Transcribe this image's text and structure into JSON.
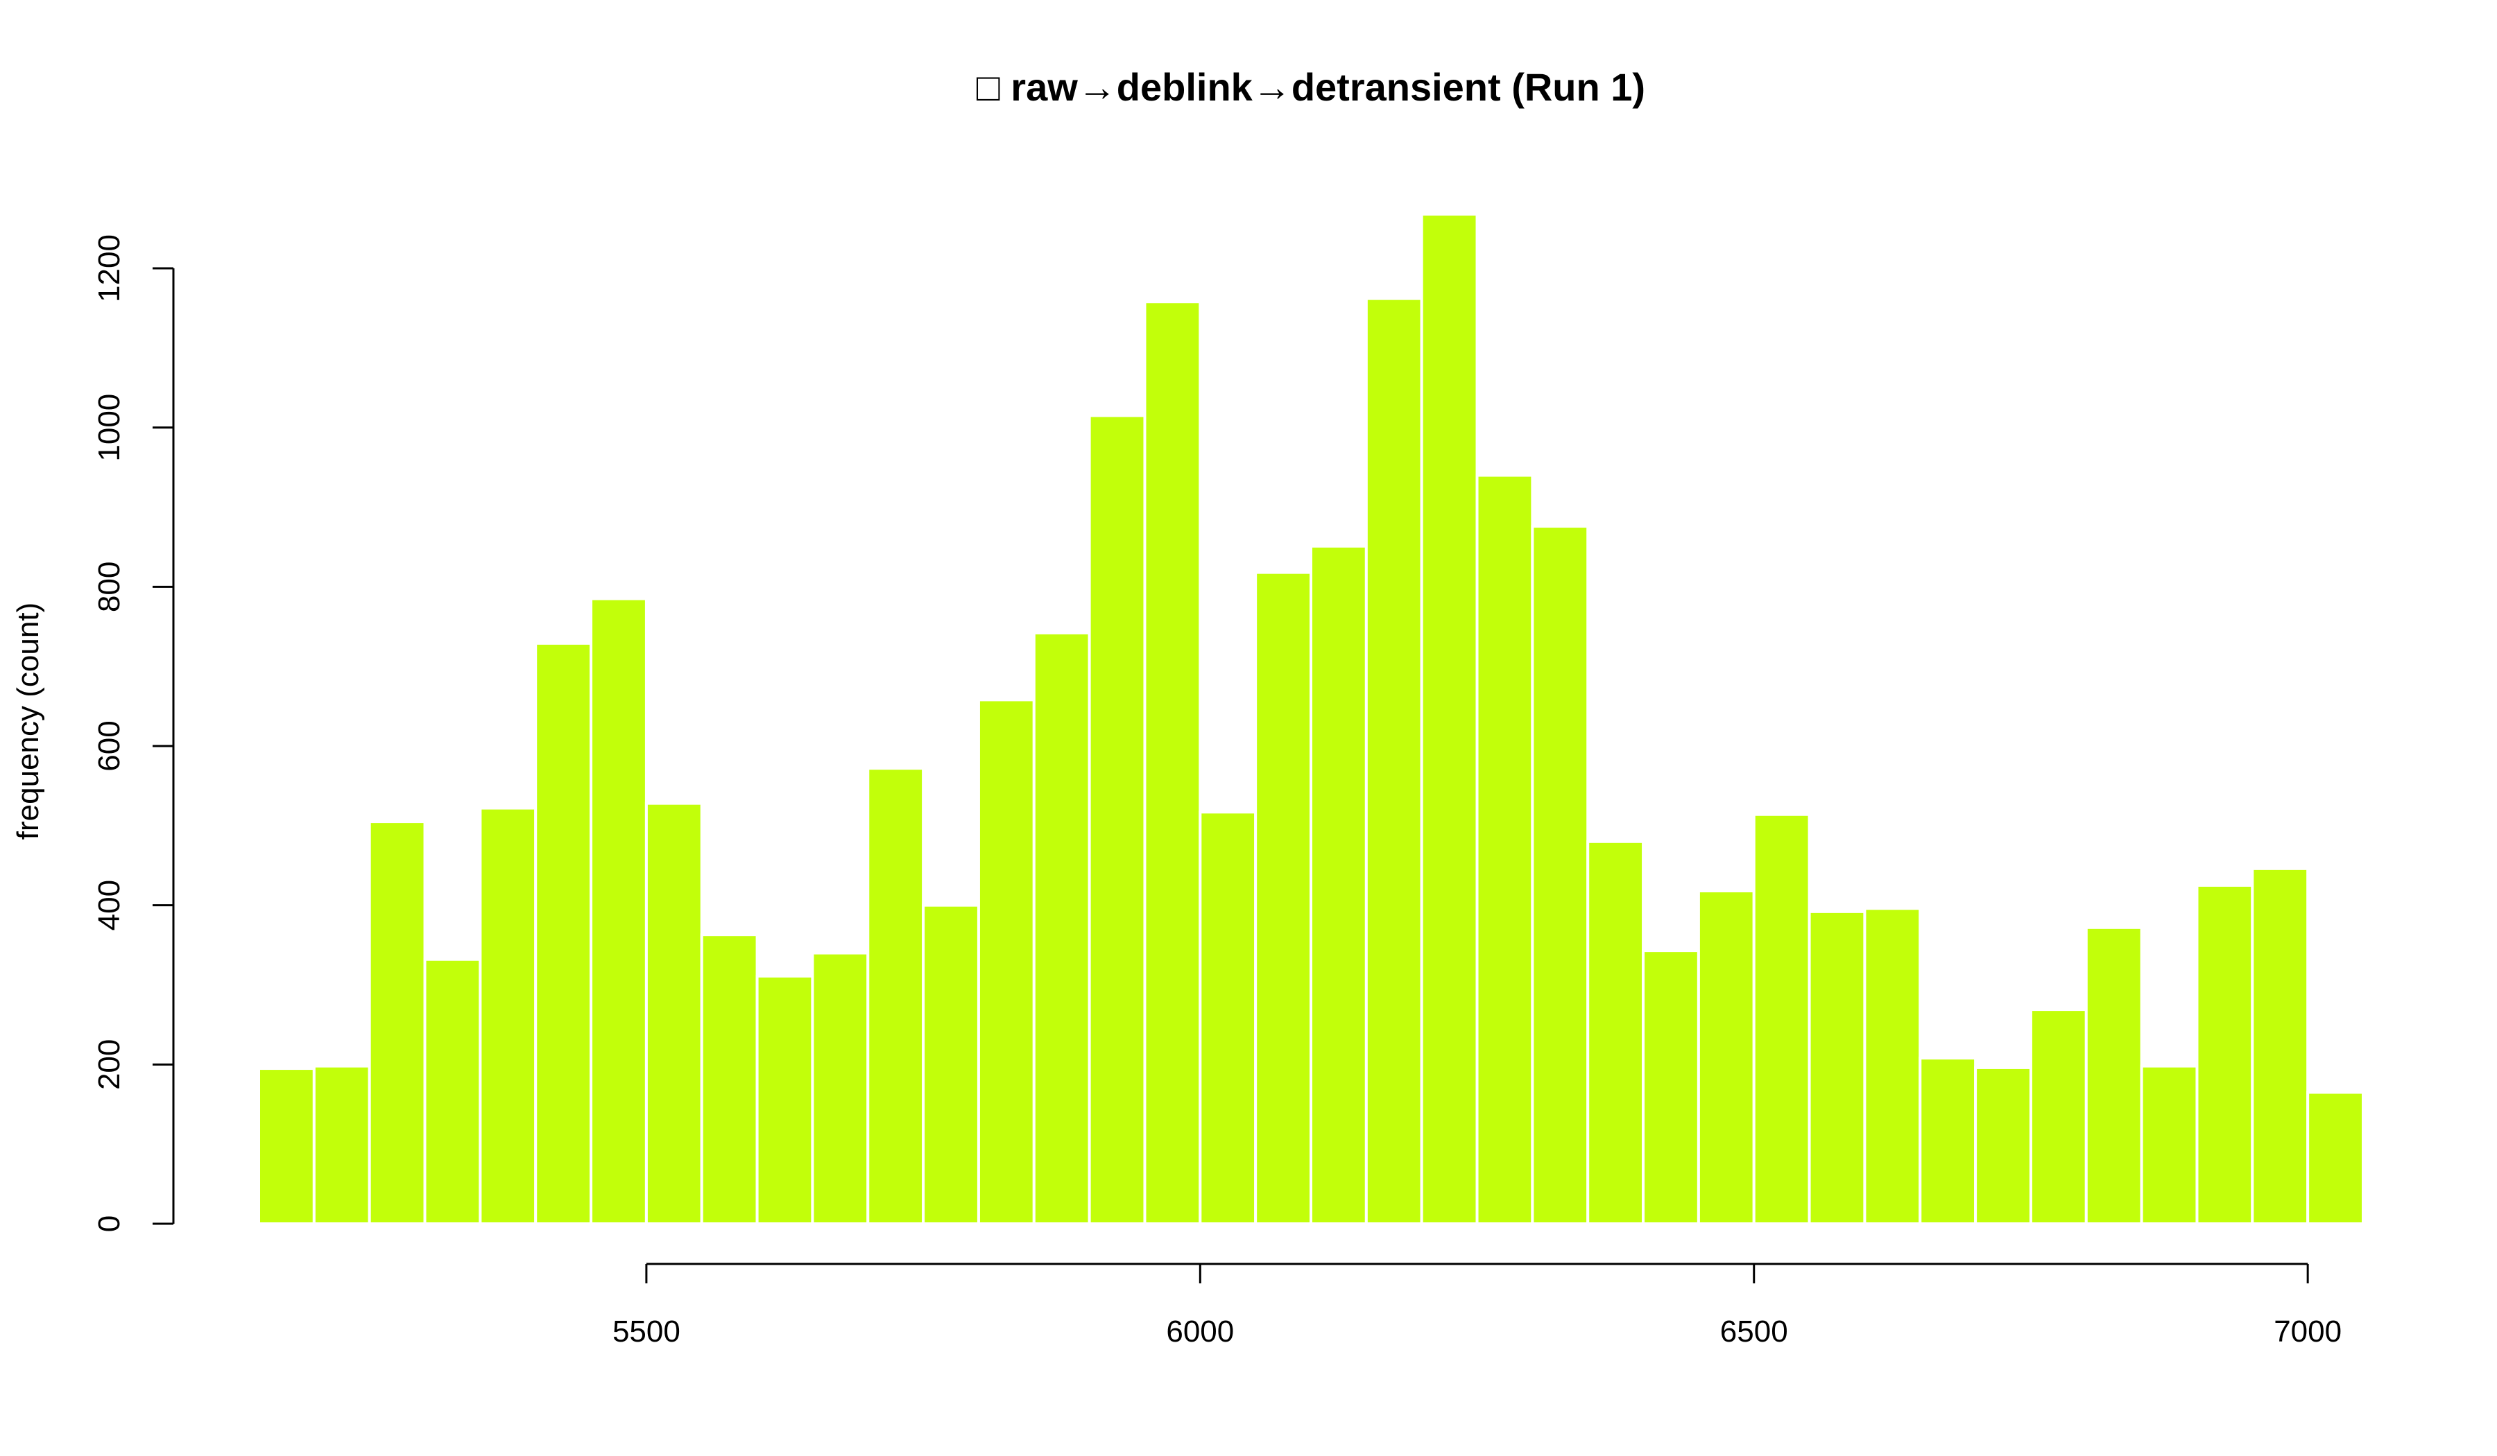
{
  "chart_data": {
    "type": "bar",
    "title": "□ raw→deblink→detransient (Run 1)",
    "xlabel": "",
    "ylabel": "frequency (count)",
    "bar_color": "#c2ff0a",
    "bar_border_color": "#ffffff",
    "bin_width": 50,
    "bin_start": 5150,
    "values": [
      195,
      198,
      505,
      332,
      522,
      729,
      785,
      528,
      363,
      311,
      340,
      572,
      400,
      658,
      742,
      1015,
      1158,
      517,
      818,
      851,
      1162,
      1268,
      940,
      876,
      480,
      343,
      418,
      514,
      392,
      396,
      208,
      196,
      269,
      372,
      198,
      425,
      446,
      165
    ],
    "xlim": [
      5150,
      7050
    ],
    "ylim": [
      0,
      1268
    ],
    "xticks": [
      5500,
      6000,
      6500,
      7000
    ],
    "xtick_labels": [
      "5500",
      "6000",
      "6500",
      "7000"
    ],
    "yticks": [
      0,
      200,
      400,
      600,
      800,
      1000,
      1200
    ],
    "ytick_labels": [
      "0",
      "200",
      "400",
      "600",
      "800",
      "1000",
      "1200"
    ],
    "grid": false,
    "legend": "none"
  }
}
